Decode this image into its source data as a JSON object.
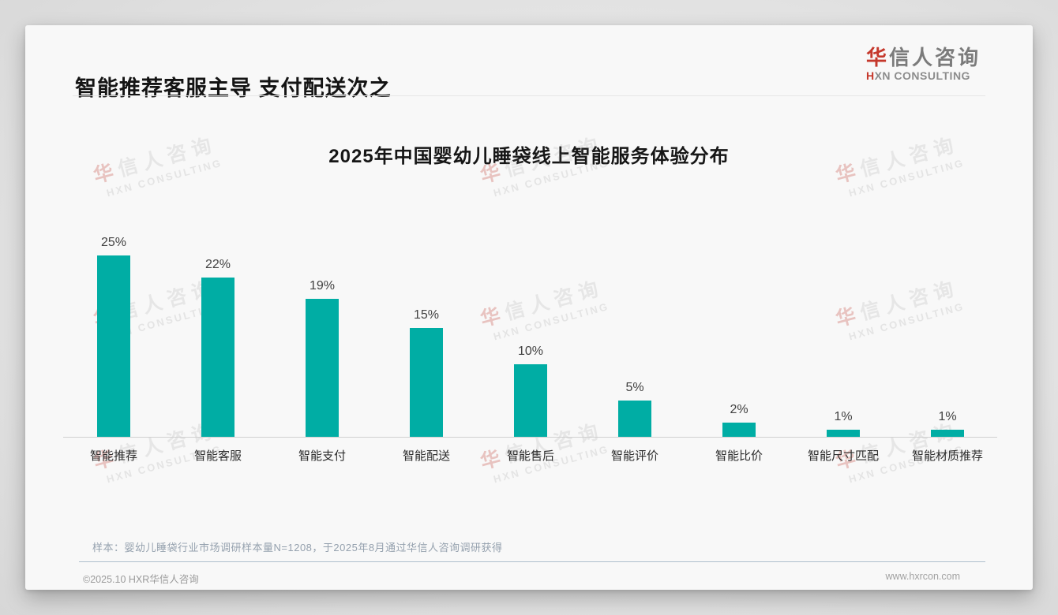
{
  "page": {
    "header": {
      "title": "智能推荐客服主导 支付配送次之"
    },
    "logo": {
      "cn_first": "华",
      "cn_rest": "信人咨询",
      "en_first": "H",
      "en_rest": "XN CONSULTING"
    },
    "watermark": {
      "line1_first": "华",
      "line1_rest": "信人咨询",
      "line2": "HXN CONSULTING"
    },
    "note": "样本：婴幼儿睡袋行业市场调研样本量N=1208，于2025年8月通过华信人咨询调研获得",
    "footer": {
      "copyright": "©2025.10 HXR华信人咨询",
      "website": "www.hxrcon.com"
    }
  },
  "chart_data": {
    "type": "bar",
    "title": "2025年中国婴幼儿睡袋线上智能服务体验分布",
    "categories": [
      "智能推荐",
      "智能客服",
      "智能支付",
      "智能配送",
      "智能售后",
      "智能评价",
      "智能比价",
      "智能尺寸匹配",
      "智能材质推荐"
    ],
    "values": [
      25,
      22,
      19,
      15,
      10,
      5,
      2,
      1,
      1
    ],
    "unit": "%",
    "value_label_format": "{v}%",
    "xlabel": "",
    "ylabel": "",
    "ylim": [
      0,
      27
    ],
    "grid": false,
    "legend": "none",
    "bar_color": "#00ADA4",
    "axis_line_color": "#cfcfcf"
  },
  "colors": {
    "accent_red": "#c5382c",
    "bar_teal": "#00ADA4",
    "note_gray_blue": "#95a1ae",
    "title_black": "#141414"
  }
}
